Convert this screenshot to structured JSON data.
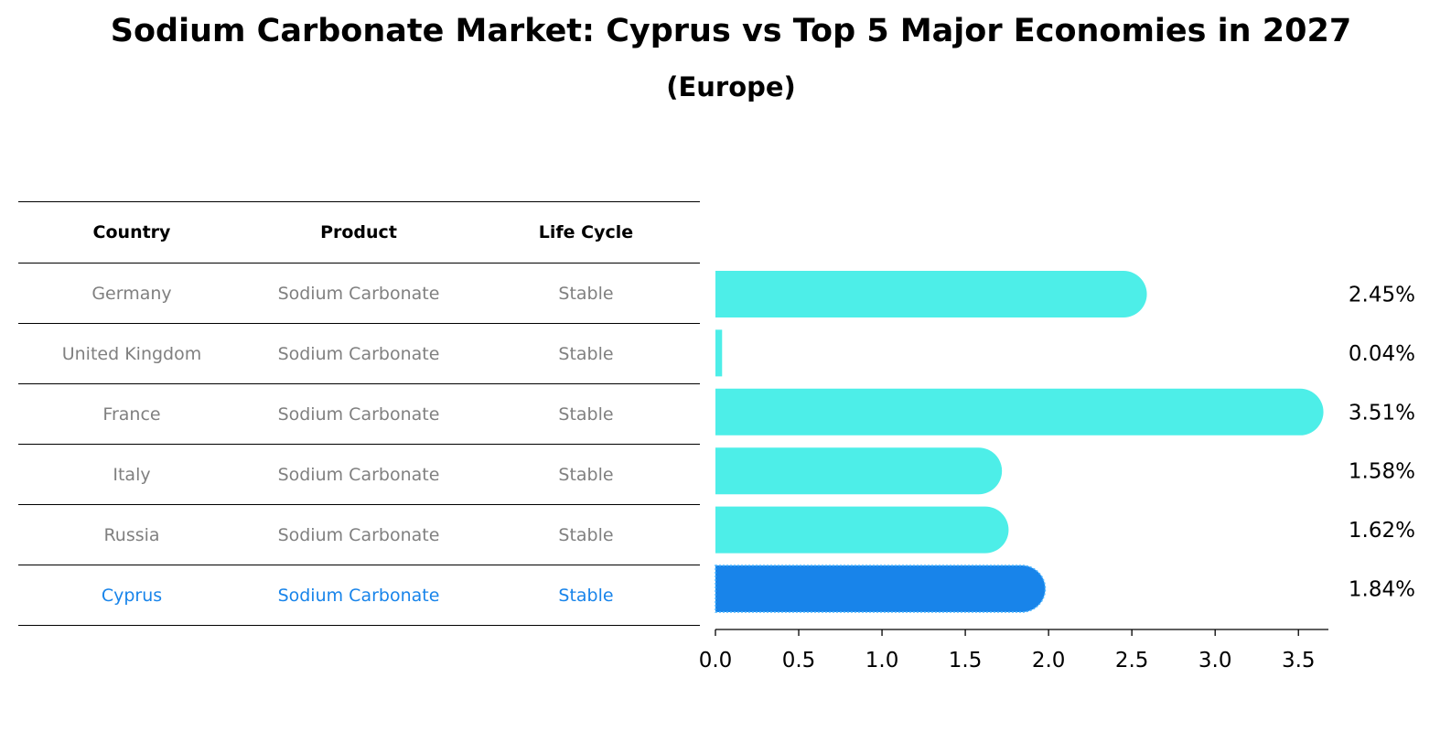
{
  "title": "Sodium Carbonate Market: Cyprus vs Top 5 Major Economies in 2027",
  "subtitle": "(Europe)",
  "table": {
    "headers": [
      "Country",
      "Product",
      "Life Cycle"
    ],
    "rows": [
      {
        "country": "Germany",
        "product": "Sodium Carbonate",
        "life_cycle": "Stable",
        "highlight": false
      },
      {
        "country": "United Kingdom",
        "product": "Sodium Carbonate",
        "life_cycle": "Stable",
        "highlight": false
      },
      {
        "country": "France",
        "product": "Sodium Carbonate",
        "life_cycle": "Stable",
        "highlight": false
      },
      {
        "country": "Italy",
        "product": "Sodium Carbonate",
        "life_cycle": "Stable",
        "highlight": false
      },
      {
        "country": "Russia",
        "product": "Sodium Carbonate",
        "life_cycle": "Stable",
        "highlight": false
      },
      {
        "country": "Cyprus",
        "product": "Sodium Carbonate",
        "life_cycle": "Stable",
        "highlight": true
      }
    ]
  },
  "colors": {
    "bar": "#4deee8",
    "highlight_bar": "#1884ea",
    "highlight_text": "#1884ea",
    "muted_text": "#808080"
  },
  "chart_data": {
    "type": "bar",
    "orientation": "horizontal",
    "categories": [
      "Germany",
      "United Kingdom",
      "France",
      "Italy",
      "Russia",
      "Cyprus"
    ],
    "values": [
      2.45,
      0.04,
      3.51,
      1.58,
      1.62,
      1.84
    ],
    "value_labels": [
      "2.45%",
      "0.04%",
      "3.51%",
      "1.58%",
      "1.62%",
      "1.84%"
    ],
    "highlight_index": 5,
    "xlim": [
      0,
      3.68
    ],
    "xticks": [
      0.0,
      0.5,
      1.0,
      1.5,
      2.0,
      2.5,
      3.0,
      3.5
    ],
    "xtick_labels": [
      "0.0",
      "0.5",
      "1.0",
      "1.5",
      "2.0",
      "2.5",
      "3.0",
      "3.5"
    ]
  }
}
